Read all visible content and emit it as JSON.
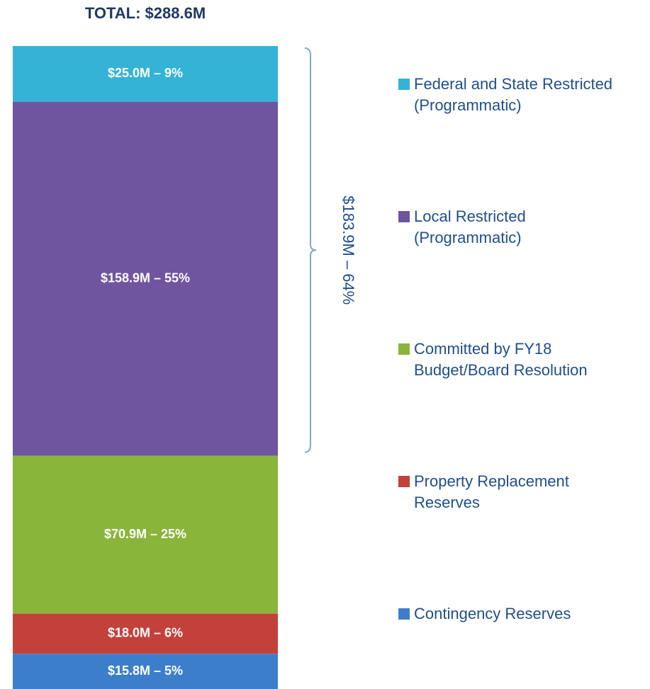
{
  "chart_data": {
    "type": "stacked_bar",
    "title": "TOTAL: $288.6M",
    "series": [
      {
        "name": "Federal and State Restricted (Programmatic)",
        "color": "#34b3d6",
        "values": [
          25.0
        ],
        "value_labels": [
          "$25.0M – 9%"
        ]
      },
      {
        "name": "Local Restricted (Programmatic)",
        "color": "#6f55a0",
        "values": [
          158.9
        ],
        "value_labels": [
          "$158.9M – 55%"
        ]
      },
      {
        "name": "Committed by FY18 Budget/Board Resolution",
        "color": "#8ab53b",
        "values": [
          70.9
        ],
        "value_labels": [
          "$70.9M – 25%"
        ]
      },
      {
        "name": "Property Replacement Reserves",
        "color": "#c4403b",
        "values": [
          18.0
        ],
        "value_labels": [
          "$18.0M – 6%"
        ]
      },
      {
        "name": "Contingency Reserves",
        "color": "#3d7ecb",
        "values": [
          15.8
        ],
        "value_labels": [
          "$15.8M – 5%"
        ]
      }
    ],
    "annotation": "$183.9M – 64%"
  }
}
